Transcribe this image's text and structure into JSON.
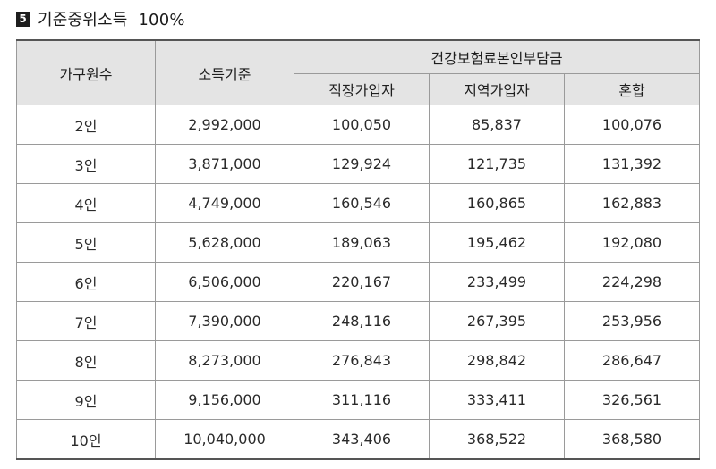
{
  "title": {
    "number": "5",
    "text": "기준중위소득  100%"
  },
  "table": {
    "headers": {
      "household": "가구원수",
      "income": "소득기준",
      "premium_group": "건강보험료본인부담금",
      "employee": "직장가입자",
      "regional": "지역가입자",
      "mixed": "혼합"
    },
    "rows": [
      [
        "2인",
        "2,992,000",
        "100,050",
        "85,837",
        "100,076"
      ],
      [
        "3인",
        "3,871,000",
        "129,924",
        "121,735",
        "131,392"
      ],
      [
        "4인",
        "4,749,000",
        "160,546",
        "160,865",
        "162,883"
      ],
      [
        "5인",
        "5,628,000",
        "189,063",
        "195,462",
        "192,080"
      ],
      [
        "6인",
        "6,506,000",
        "220,167",
        "233,499",
        "224,298"
      ],
      [
        "7인",
        "7,390,000",
        "248,116",
        "267,395",
        "253,956"
      ],
      [
        "8인",
        "8,273,000",
        "276,843",
        "298,842",
        "286,647"
      ],
      [
        "9인",
        "9,156,000",
        "311,116",
        "333,411",
        "326,561"
      ],
      [
        "10인",
        "10,040,000",
        "343,406",
        "368,522",
        "368,580"
      ]
    ]
  }
}
